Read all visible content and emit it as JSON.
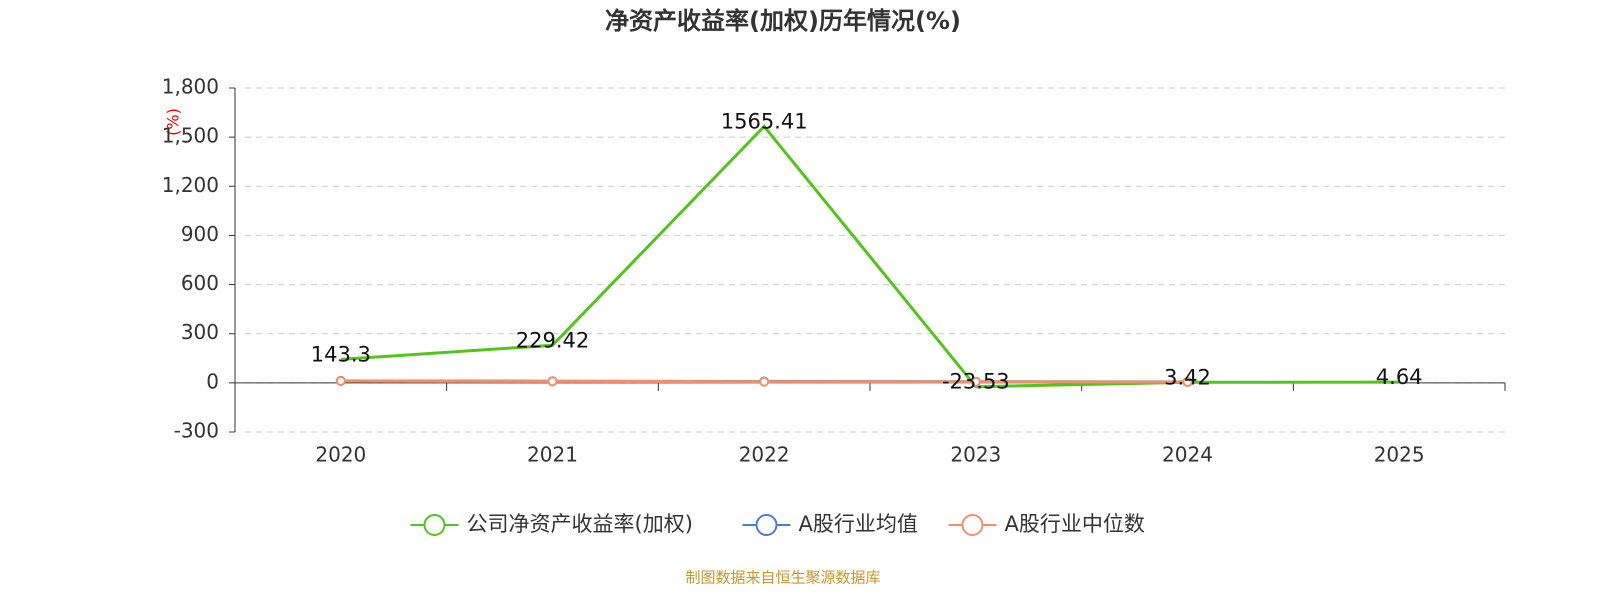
{
  "chart_data": {
    "type": "line",
    "title": "净资产收益率(加权)历年情况(%)",
    "y_axis_label": "(%)",
    "source": "制图数据来自恒生聚源数据库",
    "categories": [
      "2020",
      "2021",
      "2022",
      "2023",
      "2024",
      "2025"
    ],
    "series": [
      {
        "name": "公司净资产收益率(加权)",
        "color": "#52c41a",
        "values": [
          143.3,
          229.42,
          1565.41,
          -23.53,
          3.42,
          4.64
        ],
        "show_labels": true,
        "markers": false
      },
      {
        "name": "A股行业均值",
        "color": "#4a7bd6",
        "values": [
          12,
          10,
          8,
          7,
          6,
          null
        ],
        "show_labels": false,
        "markers": true
      },
      {
        "name": "A股行业中位数",
        "color": "#f0906a",
        "values": [
          11,
          9,
          7,
          6,
          5,
          null
        ],
        "show_labels": false,
        "markers": true
      }
    ],
    "ylim": [
      -300,
      1800
    ],
    "yticks": [
      -300,
      0,
      300,
      600,
      900,
      {
        "value": 1200,
        "label": "1,200"
      },
      {
        "value": 1500,
        "label": "1,500"
      },
      {
        "value": 1800,
        "label": "1,800"
      }
    ],
    "grid": true
  }
}
